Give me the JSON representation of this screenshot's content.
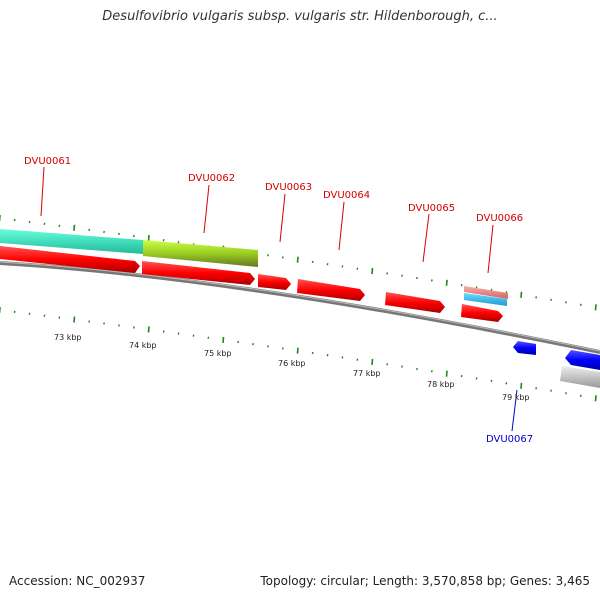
{
  "title": "Desulfovibrio vulgaris subsp. vulgaris str. Hildenborough, c...",
  "footer": {
    "accession": "Accession: NC_002937",
    "topology": "Topology: circular; Length: 3,570,858 bp; Genes: 3,465"
  },
  "colors": {
    "forward_gene": "#ff0000",
    "reverse_gene": "#0000ff",
    "forward_label": "#d40000",
    "reverse_label": "#0000cc",
    "tick": "#1a8a1a",
    "backbone": "#888888",
    "cyan_track": "#33ddbb",
    "yellowgreen_track": "#99cc22",
    "light_blue_track": "#33bbee",
    "salmon_track": "#ee8888",
    "grey_track": "#cccccc"
  },
  "scale_labels": [
    "73 kbp",
    "74 kbp",
    "75 kbp",
    "76 kbp",
    "77 kbp",
    "78 kbp",
    "79 kbp"
  ],
  "genes": [
    {
      "name": "DVU0061",
      "strand": "forward"
    },
    {
      "name": "DVU0062",
      "strand": "forward"
    },
    {
      "name": "DVU0063",
      "strand": "forward"
    },
    {
      "name": "DVU0064",
      "strand": "forward"
    },
    {
      "name": "DVU0065",
      "strand": "forward"
    },
    {
      "name": "DVU0066",
      "strand": "forward"
    },
    {
      "name": "DVU0067",
      "strand": "reverse"
    }
  ]
}
